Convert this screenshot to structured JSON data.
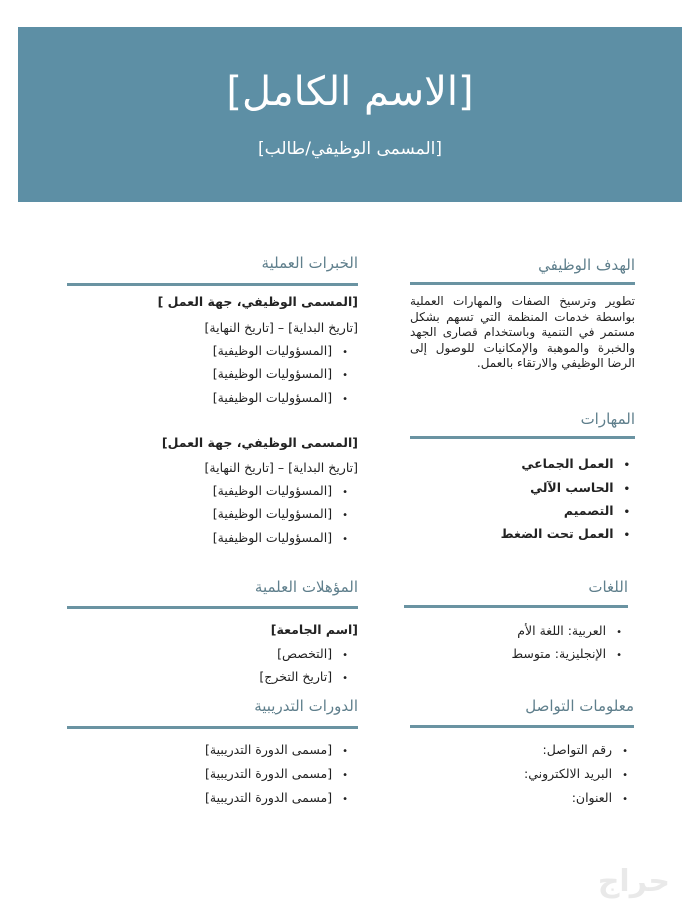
{
  "header": {
    "full_name": "[الاسم الكامل]",
    "job_title": "[المسمى الوظيفي/طالب]"
  },
  "objective": {
    "heading": "الهدف الوظيفي",
    "text": "تطوير وترسيخ الصفات والمهارات العملية بواسطة خدمات المنظمة التي تسهم بشكل مستمر في التنمية وباستخدام قصارى الجهد والخبرة والموهبة والإمكانيات للوصول إلى الرضا الوظيفي والارتقاء بالعمل."
  },
  "skills": {
    "heading": "المهارات",
    "items": [
      "العمل الجماعي",
      "الحاسب الآلي",
      "التصميم",
      "العمل تحت الضغط"
    ]
  },
  "languages": {
    "heading": "اللغات",
    "items": [
      "العربية: اللغة الأم",
      "الإنجليزية: متوسط"
    ]
  },
  "contact": {
    "heading": "معلومات التواصل",
    "items": [
      "رقم التواصل:",
      "البريد الالكتروني:",
      "العنوان:"
    ]
  },
  "experience": {
    "heading": "الخبرات العملية",
    "jobs": [
      {
        "title": "[المسمى الوظيفي، جهة العمل ]",
        "dates": "[تاريخ البداية] – [تاريخ النهاية]",
        "duties": [
          "[المسؤوليات الوظيفية]",
          "[المسؤوليات الوظيفية]",
          "[المسؤوليات الوظيفية]"
        ]
      },
      {
        "title": "[المسمى الوظيفي، جهة العمل]",
        "dates": "[تاريخ البداية] – [تاريخ النهاية]",
        "duties": [
          "[المسؤوليات الوظيفية]",
          "[المسؤوليات الوظيفية]",
          "[المسؤوليات الوظيفية]"
        ]
      }
    ]
  },
  "education": {
    "heading": "المؤهلات العلمية",
    "university": "[اسم الجامعة]",
    "items": [
      "[التخصص]",
      "[تاريخ التخرج]"
    ]
  },
  "courses": {
    "heading": "الدورات التدريبية",
    "items": [
      "[مسمى الدورة التدريبية]",
      "[مسمى الدورة التدريبية]",
      "[مسمى الدورة التدريبية]"
    ]
  },
  "watermark": "حراج",
  "colors": {
    "header_bg": "#5d8fa5",
    "rule": "#6a93a2",
    "heading": "#5f7f8c"
  }
}
